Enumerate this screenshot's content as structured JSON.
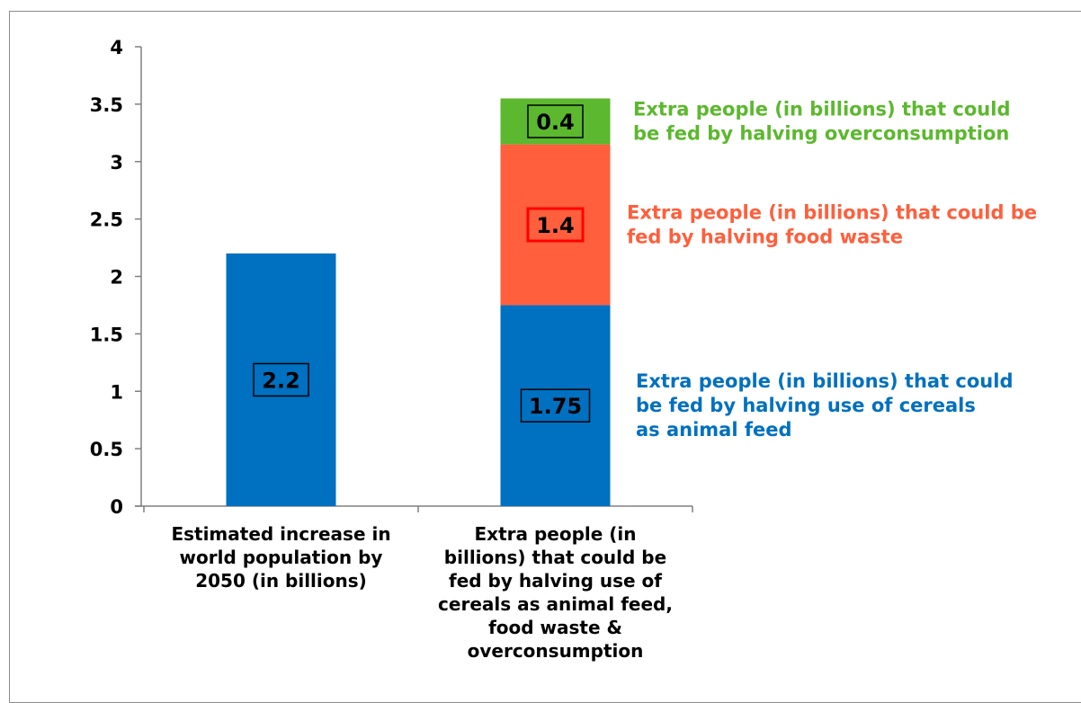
{
  "chart_data": {
    "type": "bar",
    "stacked": true,
    "categories": [
      [
        "Estimated increase in",
        "world population by",
        "2050 (in billions)"
      ],
      [
        "Extra people (in",
        "billions) that could be",
        "fed by halving use of",
        "cereals as animal feed,",
        "food waste &",
        "overconsumption"
      ]
    ],
    "series": [
      {
        "values": [
          2.2,
          1.75
        ],
        "labels": [
          "2.2",
          "1.75"
        ],
        "color": "#0070c0",
        "label_border": "#000000"
      },
      {
        "values": [
          0,
          1.4
        ],
        "labels": [
          "",
          "1.4"
        ],
        "color": "#ff5f3c",
        "label_border": "#ff0000"
      },
      {
        "values": [
          0,
          0.4
        ],
        "labels": [
          "",
          "0.4"
        ],
        "color": "#5cb82e",
        "label_border": "#000000"
      }
    ],
    "annotations": [
      {
        "series": 2,
        "color": "#5cb82e",
        "lines": [
          "Extra people (in billions) that could",
          "be fed by halving overconsumption"
        ]
      },
      {
        "series": 1,
        "color": "#ff5f3c",
        "lines": [
          "Extra people (in billions) that could be",
          "fed by halving food waste"
        ]
      },
      {
        "series": 0,
        "color": "#0070c0",
        "lines": [
          "Extra people (in billions) that could",
          "be fed by halving use of cereals",
          "as animal feed"
        ]
      }
    ],
    "yticks": [
      "0",
      "0.5",
      "1",
      "1.5",
      "2",
      "2.5",
      "3",
      "3.5",
      "4"
    ],
    "ylim": [
      0,
      4
    ],
    "grid": false,
    "legend": "none"
  }
}
